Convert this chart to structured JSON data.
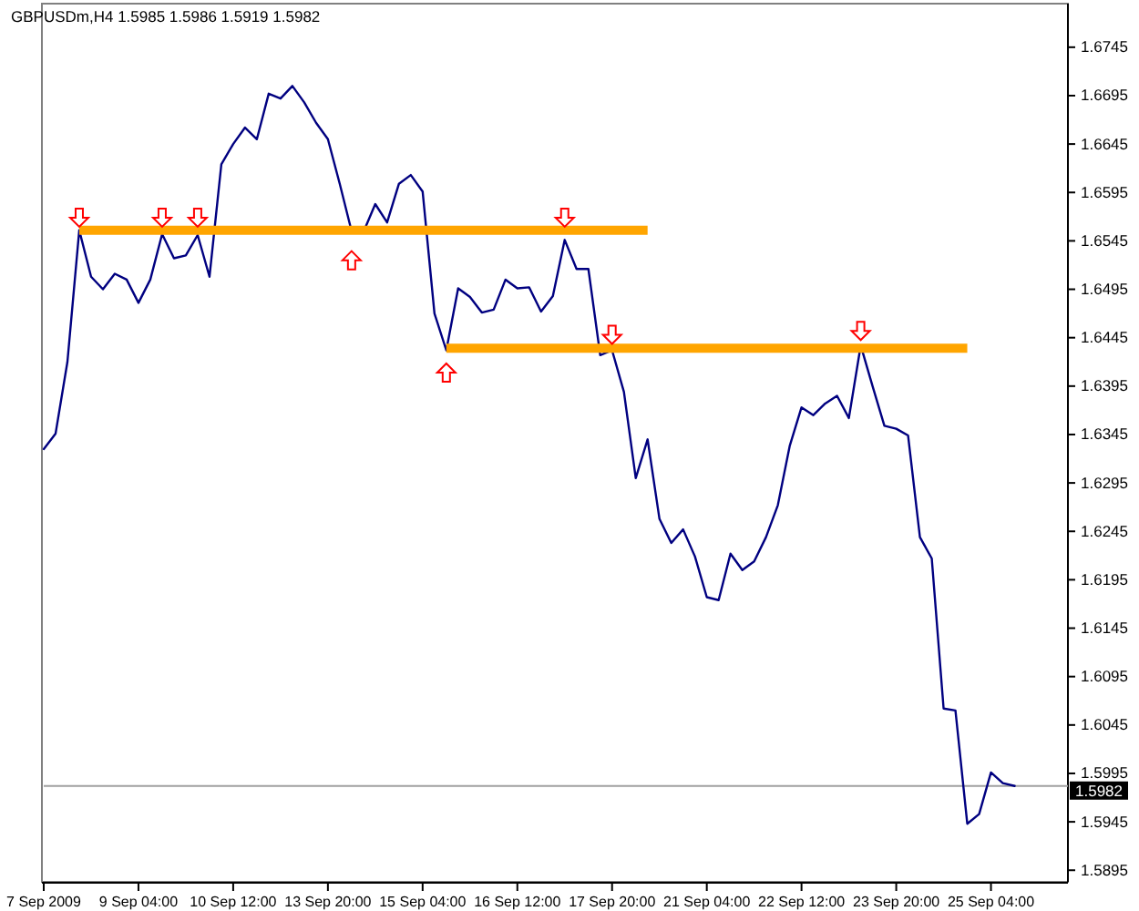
{
  "chart_data": {
    "type": "line",
    "title": "GBPUSDm,H4  1.5985 1.5986 1.5919 1.5982",
    "categories": [
      "7 Sep 2009",
      null,
      null,
      null,
      null,
      null,
      null,
      null,
      "9 Sep 04:00",
      null,
      null,
      null,
      null,
      null,
      null,
      null,
      "10 Sep 12:00",
      null,
      null,
      null,
      null,
      null,
      null,
      null,
      "13 Sep 20:00",
      null,
      null,
      null,
      null,
      null,
      null,
      null,
      "15 Sep 04:00",
      null,
      null,
      null,
      null,
      null,
      null,
      null,
      "16 Sep 12:00",
      null,
      null,
      null,
      null,
      null,
      null,
      null,
      "17 Sep 20:00",
      null,
      null,
      null,
      null,
      null,
      null,
      null,
      "21 Sep 04:00",
      null,
      null,
      null,
      null,
      null,
      null,
      null,
      "22 Sep 12:00",
      null,
      null,
      null,
      null,
      null,
      null,
      null,
      "23 Sep 20:00",
      null,
      null,
      null,
      null,
      null,
      null,
      null,
      "25 Sep 04:00",
      null,
      null
    ],
    "ylim": [
      1.5883,
      1.679
    ],
    "yticks": [
      1.5895,
      1.5945,
      1.5995,
      1.6045,
      1.6095,
      1.6145,
      1.6195,
      1.6245,
      1.6295,
      1.6345,
      1.6395,
      1.6445,
      1.6495,
      1.6545,
      1.6595,
      1.6645,
      1.6695,
      1.6745
    ],
    "grid": false,
    "series": [
      {
        "color": "#000080",
        "values": [
          1.633,
          1.6346,
          1.642,
          1.6556,
          1.6508,
          1.6495,
          1.6511,
          1.6505,
          1.6481,
          1.6505,
          1.6552,
          1.6527,
          1.653,
          1.6551,
          1.6508,
          1.6624,
          1.6645,
          1.6662,
          1.665,
          1.6697,
          1.6692,
          1.6705,
          1.6688,
          1.6667,
          1.665,
          1.6604,
          1.6555,
          1.6554,
          1.6583,
          1.6564,
          1.6604,
          1.6613,
          1.6596,
          1.647,
          1.6432,
          1.6496,
          1.6487,
          1.6471,
          1.6474,
          1.6505,
          1.6496,
          1.6497,
          1.6472,
          1.6488,
          1.6546,
          1.6516,
          1.6516,
          1.6427,
          1.6432,
          1.6389,
          1.63,
          1.634,
          1.6258,
          1.6233,
          1.6247,
          1.6219,
          1.6177,
          1.6174,
          1.6222,
          1.6205,
          1.6214,
          1.6239,
          1.6272,
          1.6333,
          1.6373,
          1.6365,
          1.6377,
          1.6385,
          1.6362,
          1.6437,
          1.6395,
          1.6354,
          1.6351,
          1.6344,
          1.6239,
          1.6217,
          1.6062,
          1.606,
          1.5943,
          1.5953,
          1.5996,
          1.5985,
          1.5982
        ]
      },
      {
        "color": "#ffa500",
        "values": [
          null,
          null,
          null,
          1.6556,
          1.6556,
          1.6556,
          1.6556,
          1.6556,
          1.6556,
          1.6556,
          1.6556,
          1.6556,
          1.6556,
          1.6556,
          1.6556,
          1.6556,
          1.6556,
          1.6556,
          1.6556,
          1.6556,
          1.6556,
          1.6556,
          1.6556,
          1.6556,
          1.6556,
          1.6556,
          1.6556,
          1.6556,
          1.6556,
          1.6556,
          1.6556,
          1.6556,
          1.6556,
          1.6556,
          1.6556,
          1.6556,
          1.6556,
          1.6556,
          1.6556,
          1.6556,
          1.6556,
          1.6556,
          1.6556,
          1.6556,
          1.6556,
          1.6556,
          1.6556,
          1.6556,
          1.6556,
          1.6556,
          1.6556,
          1.6556,
          null,
          null,
          null,
          null,
          null,
          null,
          null,
          null,
          null,
          null,
          null,
          null,
          null,
          null,
          null,
          null,
          null,
          null,
          null,
          null,
          null,
          null,
          null,
          null,
          null,
          null,
          null,
          null,
          null,
          null,
          null
        ]
      },
      {
        "color": "#ffa500",
        "values": [
          null,
          null,
          null,
          null,
          null,
          null,
          null,
          null,
          null,
          null,
          null,
          null,
          null,
          null,
          null,
          null,
          null,
          null,
          null,
          null,
          null,
          null,
          null,
          null,
          null,
          null,
          null,
          null,
          null,
          null,
          null,
          null,
          null,
          null,
          1.6434,
          1.6434,
          1.6434,
          1.6434,
          1.6434,
          1.6434,
          1.6434,
          1.6434,
          1.6434,
          1.6434,
          1.6434,
          1.6434,
          1.6434,
          1.6434,
          1.6434,
          1.6434,
          1.6434,
          1.6434,
          1.6434,
          1.6434,
          1.6434,
          1.6434,
          1.6434,
          1.6434,
          1.6434,
          1.6434,
          1.6434,
          1.6434,
          1.6434,
          1.6434,
          1.6434,
          1.6434,
          1.6434,
          1.6434,
          1.6434,
          1.6434,
          1.6434,
          1.6434,
          1.6434,
          1.6434,
          1.6434,
          1.6434,
          1.6434,
          1.6434,
          1.6434,
          null,
          null,
          null,
          null
        ]
      },
      {
        "type": "scatter",
        "color": "#ff0000",
        "values": [
          null,
          null,
          null,
          1.6569,
          null,
          null,
          null,
          null,
          null,
          null,
          1.6569,
          null,
          null,
          1.6569,
          null,
          null,
          null,
          null,
          null,
          null,
          null,
          null,
          null,
          null,
          null,
          null,
          null,
          null,
          null,
          null,
          null,
          null,
          null,
          null,
          null,
          null,
          null,
          null,
          null,
          null,
          null,
          null,
          null,
          null,
          1.6569,
          null,
          null,
          null,
          1.6448,
          null,
          null,
          null,
          null,
          null,
          null,
          null,
          null,
          null,
          null,
          null,
          null,
          null,
          null,
          null,
          null,
          null,
          null,
          null,
          null,
          1.6452,
          null,
          null,
          null,
          null,
          null,
          null,
          null,
          null,
          null,
          null,
          null,
          null,
          null
        ]
      },
      {
        "type": "scatter",
        "color": "#ff0000",
        "values": [
          null,
          null,
          null,
          null,
          null,
          null,
          null,
          null,
          null,
          null,
          null,
          null,
          null,
          null,
          null,
          null,
          null,
          null,
          null,
          null,
          null,
          null,
          null,
          null,
          null,
          null,
          1.6525,
          null,
          null,
          null,
          null,
          null,
          null,
          null,
          1.6409,
          null,
          null,
          null,
          null,
          null,
          null,
          null,
          null,
          null,
          null,
          null,
          null,
          null,
          null,
          null,
          null,
          null,
          null,
          null,
          null,
          null,
          null,
          null,
          null,
          null,
          null,
          null,
          null,
          null,
          null,
          null,
          null,
          null,
          null,
          null,
          null,
          null,
          null,
          null,
          null,
          null,
          null,
          null,
          null,
          null,
          null,
          null,
          null
        ]
      }
    ],
    "ref_lines": [
      {
        "axis": "y",
        "value": 1.5982,
        "label": "1.5982",
        "color": "#a0a0a0"
      }
    ]
  }
}
